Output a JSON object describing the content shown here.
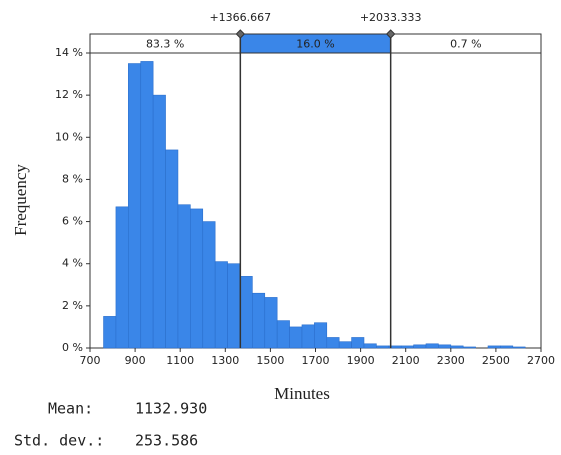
{
  "chart_data": {
    "type": "histogram",
    "xlabel": "Minutes",
    "ylabel": "Frequency",
    "bins": [
      760,
      815,
      870,
      925,
      980,
      1035,
      1090,
      1145,
      1200,
      1255,
      1310,
      1365,
      1420,
      1475,
      1530,
      1585,
      1640,
      1695,
      1750,
      1805,
      1860,
      1915,
      1970,
      2025,
      2080,
      2135,
      2190,
      2245,
      2300,
      2355,
      2410,
      2465,
      2520,
      2575,
      2630
    ],
    "values": [
      1.5,
      6.7,
      13.5,
      13.6,
      12.0,
      9.4,
      6.8,
      6.6,
      6.0,
      4.1,
      4.0,
      3.4,
      2.6,
      2.4,
      1.3,
      1.0,
      1.1,
      1.2,
      0.5,
      0.3,
      0.5,
      0.2,
      0.1,
      0.1,
      0.1,
      0.15,
      0.2,
      0.15,
      0.1,
      0.05,
      0,
      0.1,
      0.1,
      0.05
    ],
    "color": "#3a86e8",
    "xlim": [
      700,
      2700
    ],
    "xticks": [
      700,
      900,
      1100,
      1300,
      1500,
      1700,
      1900,
      2100,
      2300,
      2500,
      2700
    ],
    "ylim": [
      0,
      14
    ],
    "yticks": [
      {
        "value": 0,
        "label": "0 %"
      },
      {
        "value": 2,
        "label": "2 %"
      },
      {
        "value": 4,
        "label": "4 %"
      },
      {
        "value": 6,
        "label": "6 %"
      },
      {
        "value": 8,
        "label": "8 %"
      },
      {
        "value": 10,
        "label": "10 %"
      },
      {
        "value": 12,
        "label": "12 %"
      },
      {
        "value": 14,
        "label": "14 %"
      }
    ],
    "thresholds": [
      1366.667,
      2033.333
    ],
    "threshold_labels": [
      "+1366.667",
      "+2033.333"
    ],
    "regions": {
      "values": [
        83.3,
        16.0,
        0.7
      ],
      "value_labels": [
        "83.3 %",
        "16.0 %",
        "0.7 %"
      ],
      "highlight": 1
    }
  },
  "stats": [
    {
      "label": "Mean:",
      "value": "1132.930"
    },
    {
      "label": "Std. dev.:",
      "value": "253.586"
    }
  ]
}
